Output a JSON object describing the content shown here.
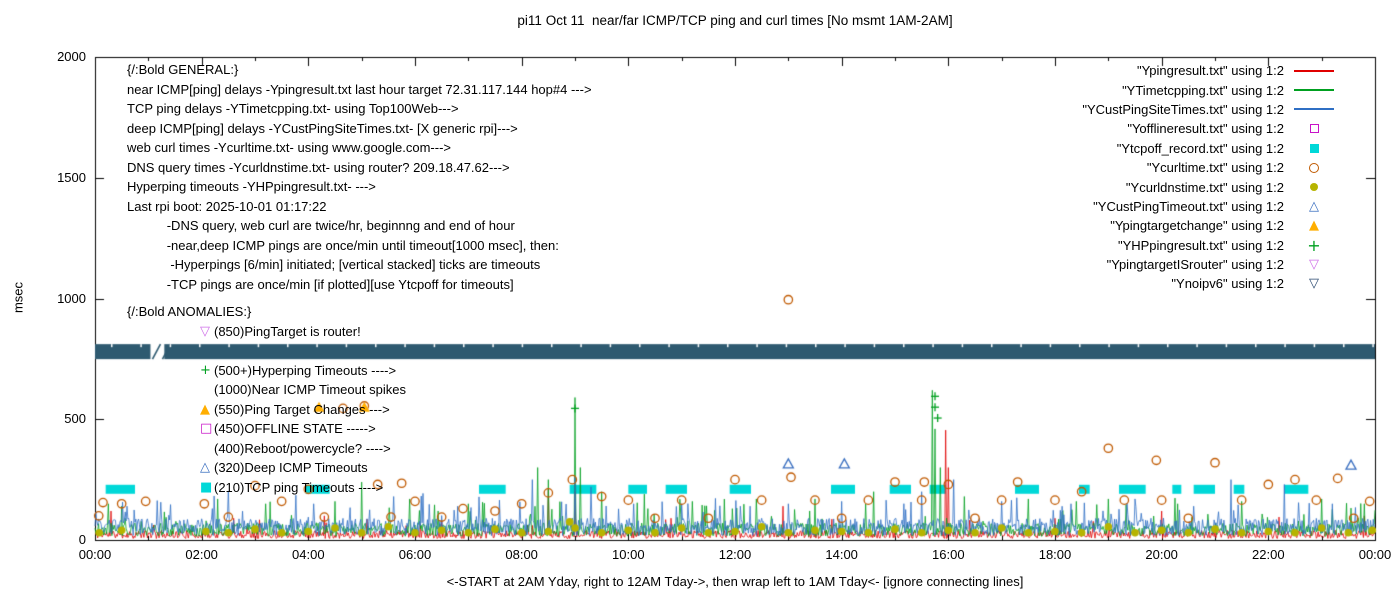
{
  "title": "pi11 Oct 11  near/far ICMP/TCP ping and curl times [No msmt 1AM-2AM]",
  "ylabel": "msec",
  "xlabel": "<-START at 2AM Yday, right to 12AM Tday->, then wrap left to 1AM Tday<- [ignore connecting lines]",
  "axes": {
    "ylim": [
      0,
      2000
    ],
    "y_ticks": [
      0,
      500,
      1000,
      1500,
      2000
    ],
    "x_tick_hours": [
      0,
      2,
      4,
      6,
      8,
      10,
      12,
      14,
      16,
      18,
      20,
      22,
      24
    ],
    "x_tick_labels": [
      "00:00",
      "02:00",
      "04:00",
      "06:00",
      "08:00",
      "10:00",
      "12:00",
      "14:00",
      "16:00",
      "18:00",
      "20:00",
      "22:00",
      "00:00"
    ]
  },
  "legend": [
    {
      "label": "\"Ypingresult.txt\" using 1:2",
      "marker": "line",
      "color": "#e00000"
    },
    {
      "label": "\"YTimetcpping.txt\" using 1:2",
      "marker": "line",
      "color": "#00a020"
    },
    {
      "label": "\"YCustPingSiteTimes.txt\" using 1:2",
      "marker": "line",
      "color": "#2f6fc4"
    },
    {
      "label": "\"Yofflineresult.txt\" using 1:2",
      "marker": "square-open",
      "color": "#c812c8"
    },
    {
      "label": "\"Ytcpoff_record.txt\" using 1:2",
      "marker": "square-fill",
      "color": "#00d8d8"
    },
    {
      "label": "\"Ycurltime.txt\" using 1:2",
      "marker": "circle-open",
      "color": "#c05a00"
    },
    {
      "label": "\"Ycurldnstime.txt\" using 1:2",
      "marker": "circle-fill",
      "color": "#b6b400"
    },
    {
      "label": "\"YCustPingTimeout.txt\" using 1:2",
      "marker": "triangle-open",
      "color": "#3a6fc0"
    },
    {
      "label": "\"Ypingtargetchange\" using 1:2",
      "marker": "triangle-fill",
      "color": "#ffae00"
    },
    {
      "label": "\"YHPpingresult.txt\" using 1:2",
      "marker": "plus",
      "color": "#00a020"
    },
    {
      "label": "\"YpingtargetISrouter\" using 1:2",
      "marker": "nabla-open",
      "color": "#cf6fe8"
    },
    {
      "label": "\"Ynoipv6\" using 1:2",
      "marker": "nabla-open",
      "color": "#2b4a70"
    }
  ],
  "general": {
    "lines": [
      "{/:Bold GENERAL:}",
      "near ICMP[ping] delays -Ypingresult.txt last hour target 72.31.117.144 hop#4 --->",
      "TCP ping delays -YTimetcpping.txt- using Top100Web--->",
      "deep ICMP[ping] delays -YCustPingSiteTimes.txt- [X generic rpi]--->",
      "web curl times -Ycurltime.txt- using www.google.com--->",
      "DNS query times -Ycurldnstime.txt- using router? 209.18.47.62--->",
      "Hyperping timeouts -YHPpingresult.txt- --->",
      "Last rpi boot: 2025-10-01 01:17:22",
      "           -DNS query, web curl are twice/hr, beginnng and end of hour",
      "           -near,deep ICMP pings are once/min until timeout[1000 msec], then:",
      "            -Hyperpings [6/min] initiated; [vertical stacked] ticks are timeouts",
      "           -TCP pings are once/min [if plotted][use Ytcpoff for timeouts]"
    ]
  },
  "anomalies": {
    "header": "{/:Bold ANOMALIES:}",
    "items": [
      {
        "glyph": "▽",
        "color": "#cf6fe8",
        "text": "(850)PingTarget is router!"
      },
      {
        "glyph": "",
        "color": "",
        "text": ""
      },
      {
        "glyph": "+",
        "color": "#00a020",
        "text": "(500+)Hyperping Timeouts ---->"
      },
      {
        "glyph": "",
        "color": "",
        "text": "(1000)Near ICMP Timeout spikes"
      },
      {
        "glyph": "▲",
        "color": "#ffae00",
        "text": "(550)Ping Target Changes --->"
      },
      {
        "glyph": "□",
        "color": "#c812c8",
        "text": "(450)OFFLINE STATE ----->"
      },
      {
        "glyph": "",
        "color": "",
        "text": "(400)Reboot/powercycle? ---->"
      },
      {
        "glyph": "△",
        "color": "#3a6fc0",
        "text": "(320)Deep ICMP Timeouts"
      },
      {
        "glyph": "■",
        "color": "#00d8d8",
        "text": "(210)TCP ping Timeouts ---->"
      }
    ]
  },
  "chart_data": {
    "type": "line",
    "title": "pi11 Oct 11  near/far ICMP/TCP ping and curl times [No msmt 1AM-2AM]",
    "xlabel": "<-START at 2AM Yday, right to 12AM Tday->, then wrap left to 1AM Tday<- [ignore connecting lines]",
    "ylabel": "msec",
    "xlim": [
      0,
      24
    ],
    "ylim": [
      0,
      2000
    ],
    "x_unit": "hours",
    "legend_position": "top-right-inside",
    "grid": false,
    "series": [
      {
        "name": "Ypingresult.txt",
        "kind": "line",
        "color": "#e00000",
        "seed": 11,
        "baseline_ms": [
          6,
          40
        ],
        "minor_spike_rate": 0.02,
        "minor_spike_max": 70,
        "spikes": [
          [
            0.3,
            120
          ],
          [
            2.6,
            90
          ],
          [
            4.3,
            100
          ],
          [
            6.5,
            80
          ],
          [
            8.5,
            210
          ],
          [
            9.0,
            200
          ],
          [
            10.8,
            90
          ],
          [
            12.9,
            140
          ],
          [
            15.95,
            455
          ],
          [
            16.0,
            300
          ],
          [
            18.0,
            90
          ],
          [
            20.0,
            120
          ],
          [
            22.2,
            95
          ],
          [
            23.8,
            100
          ]
        ]
      },
      {
        "name": "YTimetcpping.txt",
        "kind": "line",
        "color": "#00a020",
        "seed": 22,
        "baseline_ms": [
          15,
          70
        ],
        "minor_spike_rate": 0.05,
        "minor_spike_max": 110,
        "spikes": [
          [
            0.25,
            150
          ],
          [
            0.5,
            140
          ],
          [
            2.3,
            170
          ],
          [
            3.2,
            150
          ],
          [
            4.5,
            160
          ],
          [
            5.0,
            240
          ],
          [
            5.9,
            170
          ],
          [
            7.0,
            150
          ],
          [
            8.3,
            300
          ],
          [
            8.5,
            250
          ],
          [
            9.0,
            590
          ],
          [
            9.1,
            300
          ],
          [
            9.5,
            200
          ],
          [
            10.3,
            190
          ],
          [
            11.2,
            160
          ],
          [
            12.4,
            170
          ],
          [
            13.5,
            170
          ],
          [
            14.6,
            200
          ],
          [
            15.7,
            620
          ],
          [
            15.75,
            460
          ],
          [
            15.85,
            300
          ],
          [
            16.3,
            180
          ],
          [
            17.5,
            170
          ],
          [
            18.4,
            160
          ],
          [
            19.0,
            170
          ],
          [
            20.3,
            150
          ],
          [
            21.5,
            160
          ],
          [
            23.0,
            170
          ],
          [
            23.8,
            150
          ]
        ]
      },
      {
        "name": "YCustPingSiteTimes.txt",
        "kind": "line",
        "color": "#2f6fc4",
        "seed": 33,
        "baseline_ms": [
          18,
          90
        ],
        "minor_spike_rate": 0.06,
        "minor_spike_max": 120,
        "spikes": [
          [
            0.6,
            140
          ],
          [
            2.2,
            130
          ],
          [
            4.1,
            150
          ],
          [
            5.6,
            180
          ],
          [
            6.8,
            140
          ],
          [
            8.2,
            250
          ],
          [
            9.0,
            260
          ],
          [
            9.3,
            220
          ],
          [
            10.1,
            150
          ],
          [
            11.0,
            150
          ],
          [
            12.1,
            140
          ],
          [
            13.0,
            150
          ],
          [
            14.0,
            160
          ],
          [
            15.5,
            200
          ],
          [
            16.1,
            250
          ],
          [
            17.0,
            160
          ],
          [
            18.3,
            150
          ],
          [
            19.5,
            170
          ],
          [
            20.6,
            140
          ],
          [
            21.3,
            250
          ],
          [
            22.3,
            230
          ],
          [
            23.2,
            150
          ]
        ]
      },
      {
        "name": "Yofflineresult.txt",
        "kind": "points",
        "marker": "square-open",
        "color": "#c812c8",
        "points": []
      },
      {
        "name": "Ytcpoff_record.txt",
        "kind": "runs",
        "marker": "square-fill",
        "color": "#00d8d8",
        "y_ms": 210,
        "runs_hours": [
          [
            0.2,
            0.75
          ],
          [
            3.95,
            4.4
          ],
          [
            7.2,
            7.7
          ],
          [
            8.9,
            9.4
          ],
          [
            10.0,
            10.35
          ],
          [
            10.7,
            11.1
          ],
          [
            11.9,
            12.3
          ],
          [
            13.8,
            14.25
          ],
          [
            14.9,
            15.3
          ],
          [
            15.65,
            15.95
          ],
          [
            17.25,
            17.7
          ],
          [
            18.45,
            18.65
          ],
          [
            19.2,
            19.7
          ],
          [
            20.2,
            20.35
          ],
          [
            20.6,
            21.0
          ],
          [
            21.35,
            21.55
          ],
          [
            22.3,
            22.75
          ]
        ]
      },
      {
        "name": "Ycurltime.txt",
        "kind": "points",
        "marker": "circle-open",
        "color": "#c05a00",
        "points": [
          [
            0.07,
            100
          ],
          [
            0.15,
            155
          ],
          [
            0.5,
            150
          ],
          [
            0.95,
            160
          ],
          [
            2.05,
            150
          ],
          [
            2.5,
            95
          ],
          [
            3.0,
            225
          ],
          [
            3.5,
            160
          ],
          [
            4.0,
            210
          ],
          [
            4.3,
            95
          ],
          [
            4.65,
            545
          ],
          [
            5.05,
            555
          ],
          [
            5.3,
            230
          ],
          [
            5.55,
            95
          ],
          [
            5.75,
            235
          ],
          [
            6.0,
            160
          ],
          [
            6.5,
            95
          ],
          [
            6.9,
            130
          ],
          [
            7.5,
            120
          ],
          [
            8.0,
            150
          ],
          [
            8.5,
            195
          ],
          [
            8.95,
            250
          ],
          [
            9.5,
            180
          ],
          [
            10.0,
            165
          ],
          [
            10.5,
            90
          ],
          [
            11.0,
            165
          ],
          [
            11.5,
            90
          ],
          [
            12.0,
            250
          ],
          [
            12.5,
            165
          ],
          [
            13.0,
            995
          ],
          [
            13.05,
            260
          ],
          [
            13.5,
            165
          ],
          [
            14.0,
            90
          ],
          [
            14.5,
            165
          ],
          [
            15.0,
            240
          ],
          [
            15.5,
            165
          ],
          [
            15.55,
            240
          ],
          [
            16.0,
            230
          ],
          [
            16.5,
            90
          ],
          [
            17.0,
            165
          ],
          [
            17.3,
            240
          ],
          [
            18.0,
            165
          ],
          [
            18.5,
            200
          ],
          [
            19.0,
            380
          ],
          [
            19.3,
            165
          ],
          [
            19.9,
            330
          ],
          [
            20.0,
            165
          ],
          [
            20.5,
            90
          ],
          [
            21.0,
            320
          ],
          [
            21.5,
            165
          ],
          [
            22.0,
            230
          ],
          [
            22.5,
            250
          ],
          [
            22.9,
            165
          ],
          [
            23.3,
            255
          ],
          [
            23.6,
            90
          ],
          [
            23.9,
            160
          ]
        ]
      },
      {
        "name": "Ycurldnstime.txt",
        "kind": "points",
        "marker": "circle-fill",
        "color": "#b6b400",
        "points": [
          [
            0.08,
            30
          ],
          [
            0.5,
            40
          ],
          [
            2.08,
            35
          ],
          [
            2.5,
            30
          ],
          [
            3.0,
            45
          ],
          [
            3.5,
            30
          ],
          [
            4.0,
            35
          ],
          [
            4.5,
            50
          ],
          [
            5.0,
            30
          ],
          [
            5.5,
            55
          ],
          [
            6.0,
            30
          ],
          [
            6.5,
            40
          ],
          [
            7.0,
            30
          ],
          [
            7.5,
            45
          ],
          [
            8.0,
            30
          ],
          [
            8.5,
            35
          ],
          [
            8.9,
            75
          ],
          [
            9.0,
            50
          ],
          [
            9.5,
            30
          ],
          [
            10.0,
            40
          ],
          [
            10.5,
            30
          ],
          [
            11.0,
            50
          ],
          [
            11.5,
            30
          ],
          [
            12.0,
            35
          ],
          [
            12.5,
            55
          ],
          [
            13.0,
            30
          ],
          [
            13.5,
            40
          ],
          [
            14.0,
            35
          ],
          [
            14.5,
            30
          ],
          [
            15.0,
            45
          ],
          [
            15.5,
            30
          ],
          [
            16.0,
            40
          ],
          [
            16.5,
            30
          ],
          [
            17.0,
            50
          ],
          [
            17.5,
            30
          ],
          [
            18.0,
            35
          ],
          [
            18.5,
            30
          ],
          [
            19.0,
            55
          ],
          [
            19.5,
            30
          ],
          [
            20.0,
            40
          ],
          [
            20.5,
            30
          ],
          [
            21.0,
            45
          ],
          [
            21.5,
            30
          ],
          [
            22.0,
            35
          ],
          [
            22.5,
            30
          ],
          [
            23.0,
            50
          ],
          [
            23.5,
            30
          ],
          [
            23.95,
            40
          ]
        ]
      },
      {
        "name": "YCustPingTimeout.txt",
        "kind": "points",
        "marker": "triangle-open",
        "color": "#3a6fc0",
        "points": [
          [
            13.0,
            315
          ],
          [
            14.05,
            315
          ],
          [
            23.55,
            310
          ]
        ]
      },
      {
        "name": "Ypingtargetchange",
        "kind": "points",
        "marker": "triangle-fill",
        "color": "#ffae00",
        "points": [
          [
            4.2,
            550
          ],
          [
            5.05,
            550
          ]
        ]
      },
      {
        "name": "YHPpingresult.txt",
        "kind": "points",
        "marker": "plus",
        "color": "#00a020",
        "points": [
          [
            9.0,
            545
          ],
          [
            15.75,
            595
          ],
          [
            15.75,
            550
          ],
          [
            15.8,
            505
          ]
        ]
      },
      {
        "name": "YpingtargetISrouter",
        "kind": "points",
        "marker": "nabla-open",
        "color": "#cf6fe8",
        "points": []
      },
      {
        "name": "Ynoipv6",
        "kind": "band",
        "marker": "nabla-open",
        "color": "#2e5a70",
        "y_ms": 780,
        "band_halfheight_ms": 31,
        "x_range": [
          0,
          24
        ],
        "gaps": [
          [
            1.04,
            1.3
          ]
        ]
      }
    ]
  }
}
